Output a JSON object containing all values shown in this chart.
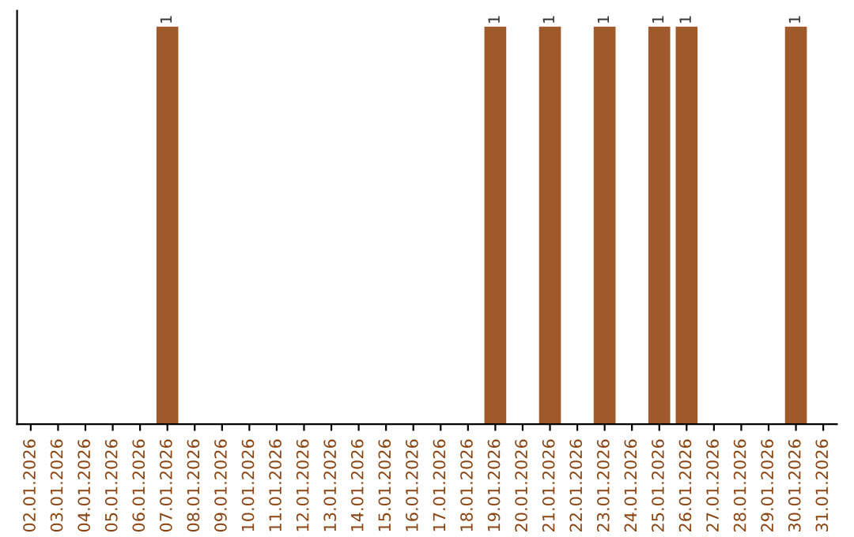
{
  "chart_data": {
    "type": "bar",
    "categories": [
      "02.01.2026",
      "03.01.2026",
      "04.01.2026",
      "05.01.2026",
      "06.01.2026",
      "07.01.2026",
      "08.01.2026",
      "09.01.2026",
      "10.01.2026",
      "11.01.2026",
      "12.01.2026",
      "13.01.2026",
      "14.01.2026",
      "15.01.2026",
      "16.01.2026",
      "17.01.2026",
      "18.01.2026",
      "19.01.2026",
      "20.01.2026",
      "21.01.2026",
      "22.01.2026",
      "23.01.2026",
      "24.01.2026",
      "25.01.2026",
      "26.01.2026",
      "27.01.2026",
      "28.01.2026",
      "29.01.2026",
      "30.01.2026",
      "31.01.2026"
    ],
    "values": [
      0,
      0,
      0,
      0,
      0,
      1,
      0,
      0,
      0,
      0,
      0,
      0,
      0,
      0,
      0,
      0,
      0,
      1,
      0,
      1,
      0,
      1,
      0,
      1,
      1,
      0,
      0,
      0,
      1,
      0
    ],
    "value_labels": [
      null,
      null,
      null,
      null,
      null,
      "1",
      null,
      null,
      null,
      null,
      null,
      null,
      null,
      null,
      null,
      null,
      null,
      "1",
      null,
      "1",
      null,
      "1",
      null,
      "1",
      "1",
      null,
      null,
      null,
      "1",
      null
    ],
    "color": "#a0592a",
    "tick_labels": "x",
    "grid": false,
    "legend": false
  }
}
